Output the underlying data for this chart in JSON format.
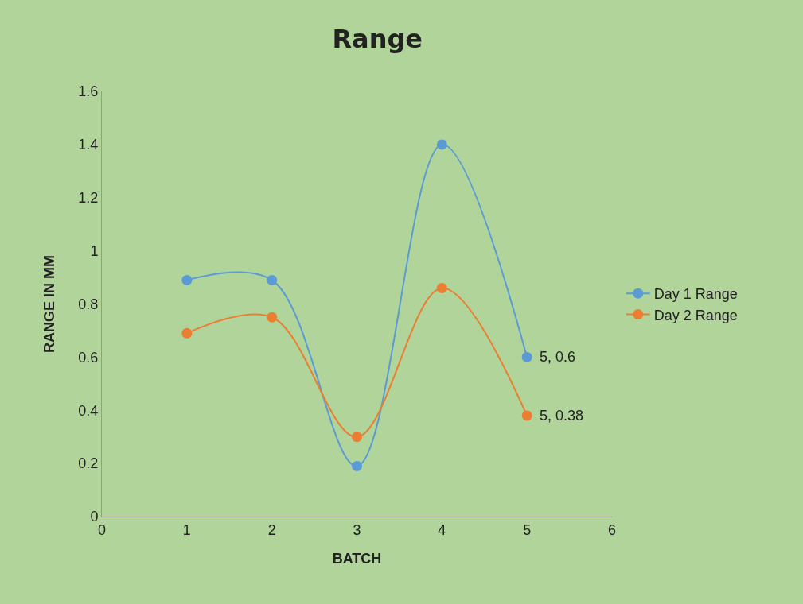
{
  "chart_data": {
    "type": "line",
    "title": "Range",
    "xlabel": "BATCH",
    "ylabel": "RANGE IN MM",
    "x": [
      1,
      2,
      3,
      4,
      5
    ],
    "series": [
      {
        "name": "Day 1 Range",
        "color": "#5b9bd5",
        "values": [
          0.89,
          0.89,
          0.19,
          1.4,
          0.6
        ]
      },
      {
        "name": "Day 2 Range",
        "color": "#ed7d31",
        "values": [
          0.69,
          0.75,
          0.3,
          0.86,
          0.38
        ]
      }
    ],
    "xlim": [
      0,
      6
    ],
    "xticks": [
      0,
      1,
      2,
      3,
      4,
      5,
      6
    ],
    "ylim": [
      0,
      1.6
    ],
    "yticks": [
      0,
      0.2,
      0.4,
      0.6,
      0.8,
      1,
      1.2,
      1.4,
      1.6
    ],
    "grid": false,
    "legend": "right",
    "marker": "circle",
    "line_style": "solid",
    "annotations": [
      {
        "text": "5, 0.6",
        "x": 5,
        "y": 0.6
      },
      {
        "text": "5, 0.38",
        "x": 5,
        "y": 0.38
      }
    ]
  }
}
